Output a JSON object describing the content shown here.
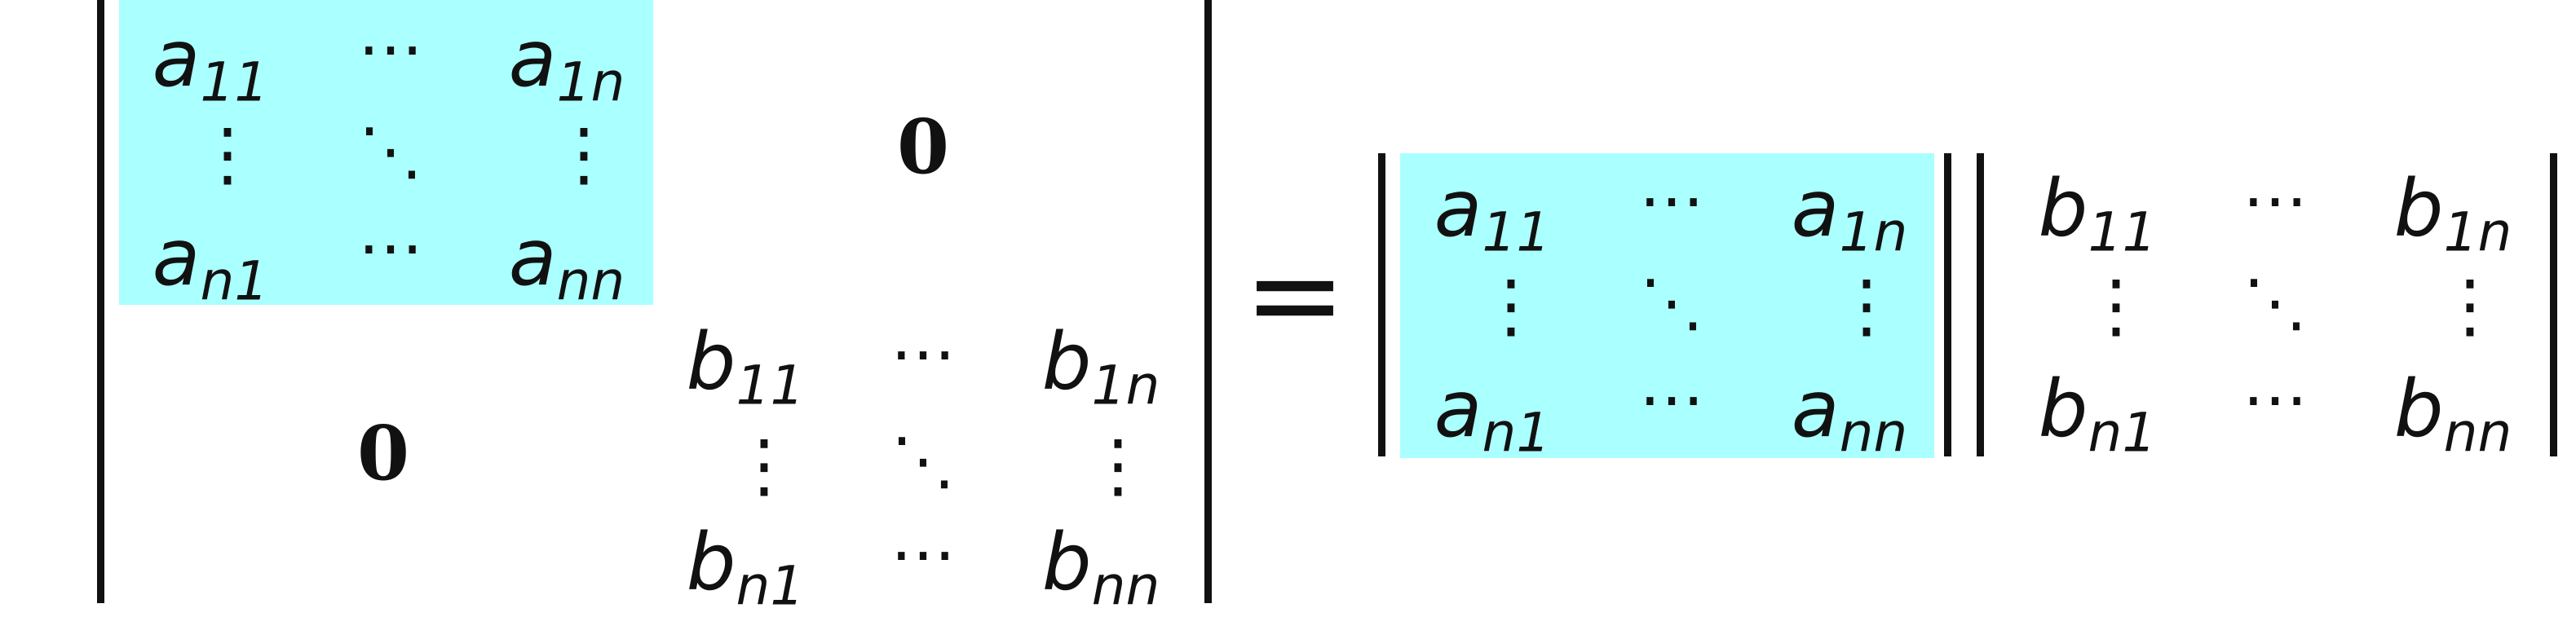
{
  "equation": {
    "lhs": {
      "block_a": {
        "top_left": "a",
        "top_left_sub": "11",
        "top_right": "a",
        "top_right_sub": "1n",
        "bottom_left": "a",
        "bottom_left_sub": "n1",
        "bottom_right": "a",
        "bottom_right_sub": "nn",
        "highlight_color": "#aaffff"
      },
      "zero_top_right": "0",
      "zero_bottom_left": "0",
      "block_b": {
        "top_left": "b",
        "top_left_sub": "11",
        "top_right": "b",
        "top_right_sub": "1n",
        "bottom_left": "b",
        "bottom_left_sub": "n1",
        "bottom_right": "b",
        "bottom_right_sub": "nn"
      }
    },
    "equals": "=",
    "rhs": {
      "det_a": {
        "top_left": "a",
        "top_left_sub": "11",
        "top_right": "a",
        "top_right_sub": "1n",
        "bottom_left": "a",
        "bottom_left_sub": "n1",
        "bottom_right": "a",
        "bottom_right_sub": "nn",
        "highlight_color": "#aaffff"
      },
      "det_b": {
        "top_left": "b",
        "top_left_sub": "11",
        "top_right": "b",
        "top_right_sub": "1n",
        "bottom_left": "b",
        "bottom_left_sub": "n1",
        "bottom_right": "b",
        "bottom_right_sub": "nn"
      }
    },
    "hdots": "⋯",
    "vdots": "⋮",
    "ddots": "⋱"
  }
}
